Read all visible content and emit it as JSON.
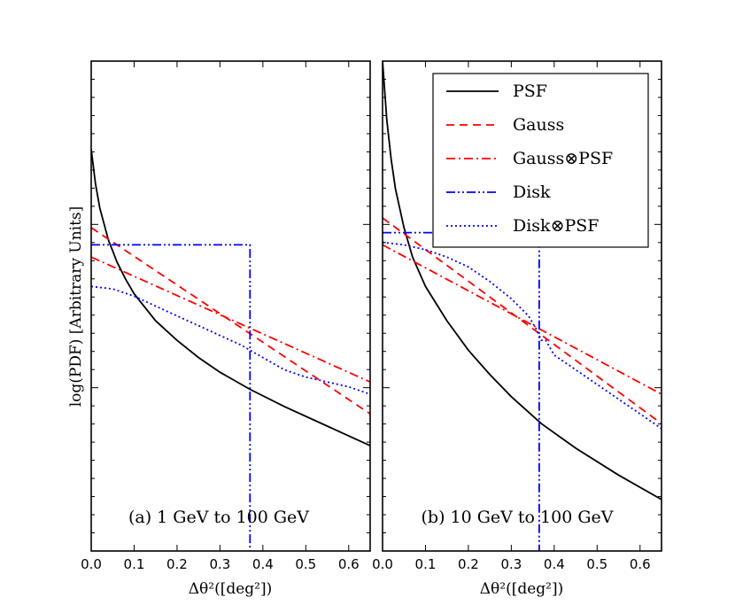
{
  "chart_data": {
    "type": "line",
    "ylabel": "log(PDF) [Arbitrary Units]",
    "xlim": [
      0.0,
      0.65
    ],
    "ylim": [
      0,
      10
    ],
    "x_ticks": [
      "0.0",
      "0.1",
      "0.2",
      "0.3",
      "0.4",
      "0.5",
      "0.6"
    ],
    "legend": {
      "placement": "top-right of panel (b)",
      "entries": [
        {
          "key": "psf",
          "label": "PSF",
          "color": "#000000",
          "dash": "solid"
        },
        {
          "key": "gauss",
          "label": "Gauss",
          "color": "#ff0000",
          "dash": "dashed"
        },
        {
          "key": "gausspsf",
          "label": "Gauss⊗PSF",
          "color": "#ff0000",
          "dash": "dashdot"
        },
        {
          "key": "disk",
          "label": "Disk",
          "color": "#0000ff",
          "dash": "dashdotdot"
        },
        {
          "key": "diskpsf",
          "label": "Disk⊗PSF",
          "color": "#0000ff",
          "dash": "dotted"
        }
      ]
    },
    "panels": [
      {
        "id": "a",
        "label": "(a) 1 GeV to 100 GeV",
        "xlabel": "Δθ²([deg²])",
        "series": {
          "psf": {
            "x": [
              0.0,
              0.01,
              0.02,
              0.04,
              0.06,
              0.08,
              0.1,
              0.15,
              0.2,
              0.25,
              0.3,
              0.37,
              0.45,
              0.55,
              0.65
            ],
            "y": [
              8.2,
              7.5,
              7.0,
              6.35,
              5.9,
              5.55,
              5.25,
              4.7,
              4.3,
              3.95,
              3.65,
              3.3,
              2.95,
              2.55,
              2.15
            ]
          },
          "gauss": {
            "x": [
              0.0,
              0.65
            ],
            "y": [
              6.6,
              2.8
            ]
          },
          "gausspsf": {
            "x": [
              0.0,
              0.65
            ],
            "y": [
              6.0,
              3.45
            ]
          },
          "disk": {
            "x": [
              0.0,
              0.37,
              0.37
            ],
            "y": [
              6.25,
              6.25,
              0.0
            ]
          },
          "diskpsf": {
            "x": [
              0.0,
              0.05,
              0.1,
              0.15,
              0.2,
              0.25,
              0.3,
              0.35,
              0.37,
              0.4,
              0.45,
              0.5,
              0.55,
              0.6,
              0.65
            ],
            "y": [
              5.4,
              5.35,
              5.2,
              5.0,
              4.8,
              4.6,
              4.4,
              4.2,
              4.1,
              3.95,
              3.7,
              3.55,
              3.45,
              3.35,
              3.2
            ]
          }
        }
      },
      {
        "id": "b",
        "label": "(b) 10 GeV to 100 GeV",
        "xlabel": "Δθ²([deg²])",
        "series": {
          "psf": {
            "x": [
              0.0,
              0.005,
              0.01,
              0.02,
              0.03,
              0.05,
              0.07,
              0.1,
              0.15,
              0.2,
              0.25,
              0.3,
              0.37,
              0.45,
              0.55,
              0.65
            ],
            "y": [
              10.0,
              9.4,
              8.8,
              8.0,
              7.4,
              6.6,
              6.0,
              5.4,
              4.7,
              4.1,
              3.6,
              3.15,
              2.6,
              2.1,
              1.55,
              1.05
            ]
          },
          "gauss": {
            "x": [
              0.0,
              0.65
            ],
            "y": [
              6.8,
              2.6
            ]
          },
          "gausspsf": {
            "x": [
              0.0,
              0.65
            ],
            "y": [
              6.25,
              3.2
            ]
          },
          "disk": {
            "x": [
              0.0,
              0.365,
              0.365
            ],
            "y": [
              6.5,
              6.5,
              0.0
            ]
          },
          "diskpsf": {
            "x": [
              0.0,
              0.05,
              0.1,
              0.15,
              0.2,
              0.25,
              0.3,
              0.34,
              0.36,
              0.37,
              0.38,
              0.4,
              0.45,
              0.5,
              0.55,
              0.6,
              0.65
            ],
            "y": [
              6.3,
              6.25,
              6.15,
              6.0,
              5.8,
              5.5,
              5.15,
              4.8,
              4.5,
              4.3,
              4.3,
              4.0,
              3.7,
              3.4,
              3.1,
              2.8,
              2.5
            ]
          }
        }
      }
    ]
  }
}
